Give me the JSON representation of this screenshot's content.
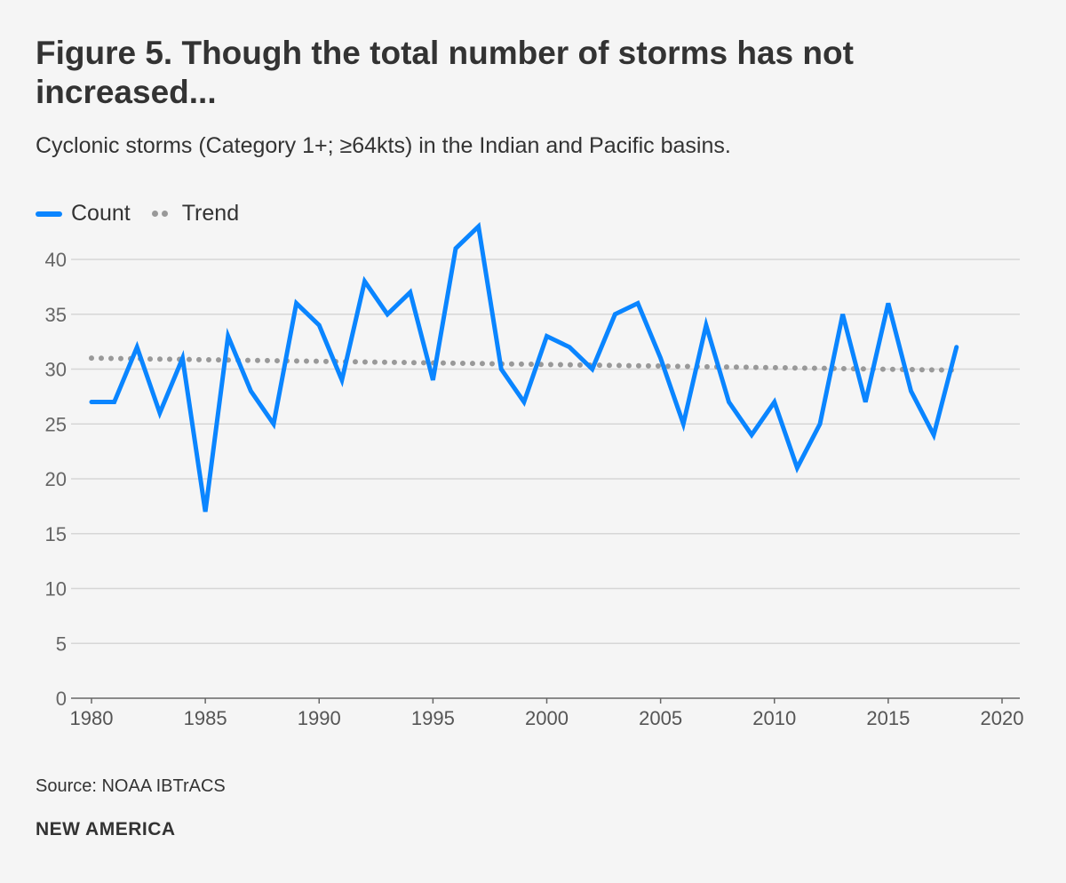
{
  "chart_data": {
    "type": "line",
    "title": "Figure 5. Though the total number of storms has not increased...",
    "subtitle": "Cyclonic storms (Category 1+; ≥64kts) in the Indian and Pacific basins.",
    "xlabel": "",
    "ylabel": "",
    "xlim": [
      1980,
      2020
    ],
    "ylim": [
      0,
      40
    ],
    "xticks": [
      1980,
      1985,
      1990,
      1995,
      2000,
      2005,
      2010,
      2015,
      2020
    ],
    "yticks": [
      0,
      5,
      10,
      15,
      20,
      25,
      30,
      35,
      40
    ],
    "grid": true,
    "legend_position": "top-left",
    "x": [
      1980,
      1981,
      1982,
      1983,
      1984,
      1985,
      1986,
      1987,
      1988,
      1989,
      1990,
      1991,
      1992,
      1993,
      1994,
      1995,
      1996,
      1997,
      1998,
      1999,
      2000,
      2001,
      2002,
      2003,
      2004,
      2005,
      2006,
      2007,
      2008,
      2009,
      2010,
      2011,
      2012,
      2013,
      2014,
      2015,
      2016,
      2017,
      2018
    ],
    "series": [
      {
        "name": "Count",
        "color": "#0a85ff",
        "style": "solid",
        "values": [
          27,
          27,
          32,
          26,
          31,
          17,
          33,
          28,
          25,
          36,
          34,
          29,
          38,
          35,
          37,
          29,
          41,
          43,
          30,
          27,
          33,
          32,
          30,
          35,
          36,
          31,
          25,
          34,
          27,
          24,
          27,
          21,
          25,
          35,
          27,
          36,
          28,
          24,
          32
        ]
      },
      {
        "name": "Trend",
        "color": "#999999",
        "style": "dotted",
        "start": 31.0,
        "end": 29.9
      }
    ]
  },
  "source": "Source: NOAA IBTrACS",
  "brand": "NEW AMERICA"
}
